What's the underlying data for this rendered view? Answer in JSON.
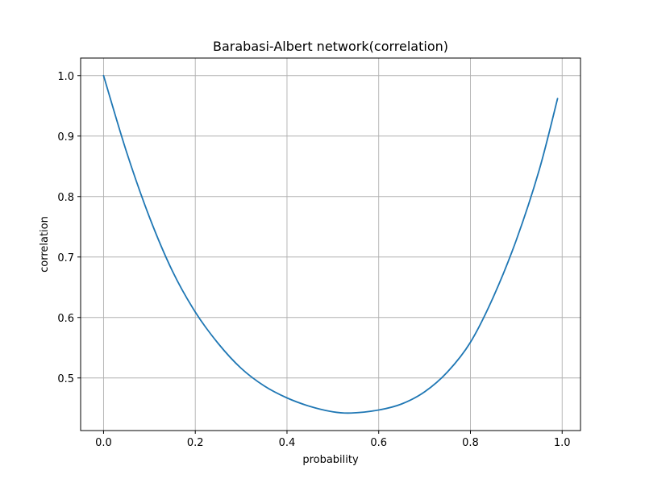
{
  "chart_data": {
    "type": "line",
    "title": "Barabasi-Albert network(correlation)",
    "xlabel": "probability",
    "ylabel": "correlation",
    "xlim": [
      -0.05,
      1.04
    ],
    "ylim": [
      0.413,
      1.029
    ],
    "grid": true,
    "xticks": [
      0.0,
      0.2,
      0.4,
      0.6,
      0.8,
      1.0
    ],
    "xtick_labels": [
      "0.0",
      "0.2",
      "0.4",
      "0.6",
      "0.8",
      "1.0"
    ],
    "yticks": [
      0.5,
      0.6,
      0.7,
      0.8,
      0.9,
      1.0
    ],
    "ytick_labels": [
      "0.5",
      "0.6",
      "0.7",
      "0.8",
      "0.9",
      "1.0"
    ],
    "colors": {
      "line": "#1f77b4",
      "grid": "#b0b0b0",
      "axes": "#000000"
    },
    "series": [
      {
        "x": [
          0.0,
          0.05,
          0.1,
          0.15,
          0.2,
          0.25,
          0.3,
          0.35,
          0.4,
          0.45,
          0.5,
          0.54,
          0.6,
          0.65,
          0.7,
          0.75,
          0.8,
          0.85,
          0.9,
          0.95,
          0.99
        ],
        "values": [
          1.0,
          0.874,
          0.766,
          0.677,
          0.609,
          0.557,
          0.516,
          0.487,
          0.467,
          0.453,
          0.444,
          0.442,
          0.447,
          0.457,
          0.477,
          0.51,
          0.559,
          0.634,
          0.728,
          0.844,
          0.962
        ]
      }
    ]
  }
}
